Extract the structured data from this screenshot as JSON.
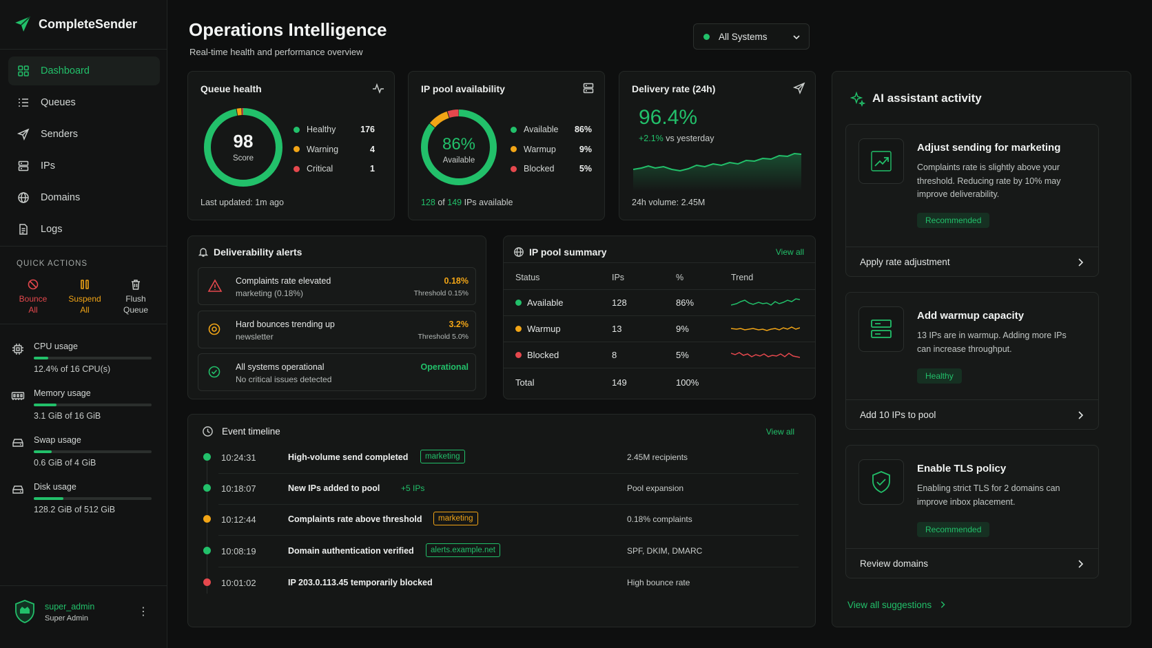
{
  "app": {
    "name": "CompleteSender"
  },
  "sidebar": {
    "nav": [
      {
        "label": "Dashboard",
        "icon": "grid-icon",
        "active": true
      },
      {
        "label": "Queues",
        "icon": "list-icon"
      },
      {
        "label": "Senders",
        "icon": "send-icon"
      },
      {
        "label": "IPs",
        "icon": "server-icon"
      },
      {
        "label": "Domains",
        "icon": "globe-icon"
      },
      {
        "label": "Logs",
        "icon": "document-icon"
      }
    ],
    "quick_actions_title": "QUICK ACTIONS",
    "quick_actions": [
      {
        "line1": "Bounce",
        "line2": "All",
        "icon": "ban-icon",
        "color": "#e5484d"
      },
      {
        "line1": "Suspend",
        "line2": "All",
        "icon": "pause-icon",
        "color": "#f2a516"
      },
      {
        "line1": "Flush",
        "line2": "Queue",
        "icon": "trash-icon",
        "color": "#c9cdcb"
      }
    ],
    "resources": [
      {
        "label": "CPU usage",
        "value": "12.4% of 16 CPU(s)",
        "fraction": 0.124,
        "icon": "cpu-icon"
      },
      {
        "label": "Memory usage",
        "value": "3.1 GiB of 16 GiB",
        "fraction": 0.194,
        "icon": "memory-icon"
      },
      {
        "label": "Swap usage",
        "value": "0.6 GiB of 4 GiB",
        "fraction": 0.15,
        "icon": "swap-icon"
      },
      {
        "label": "Disk usage",
        "value": "128.2 GiB of 512 GiB",
        "fraction": 0.25,
        "icon": "disk-icon"
      }
    ],
    "user": {
      "name": "super_admin",
      "role": "Super Admin",
      "menu": "⋮"
    }
  },
  "header": {
    "title": "Operations Intelligence",
    "subtitle": "Real-time health and performance overview",
    "system_select": "All Systems"
  },
  "queue_health": {
    "title": "Queue health",
    "score": "98",
    "score_label": "Score",
    "legend": [
      {
        "label": "Healthy",
        "value": "176",
        "color": "#22c06a"
      },
      {
        "label": "Warning",
        "value": "4",
        "color": "#f2a516"
      },
      {
        "label": "Critical",
        "value": "1",
        "color": "#e5484d"
      }
    ],
    "footer": "Last updated: 1m ago"
  },
  "ip_pool_availability": {
    "title": "IP pool availability",
    "percent": "86%",
    "percent_label": "Available",
    "legend": [
      {
        "label": "Available",
        "value": "86%",
        "color": "#22c06a"
      },
      {
        "label": "Warmup",
        "value": "9%",
        "color": "#f2a516"
      },
      {
        "label": "Blocked",
        "value": "5%",
        "color": "#e5484d"
      }
    ],
    "footer_available": "128",
    "footer_of": "of",
    "footer_total": "149",
    "footer_suffix": "IPs available"
  },
  "delivery_rate": {
    "title": "Delivery rate (24h)",
    "value": "96.4%",
    "change": "+2.1%",
    "change_suffix": "vs yesterday",
    "footer": "24h volume: 2.45M"
  },
  "deliverability_alerts": {
    "title": "Deliverability alerts",
    "items": [
      {
        "title": "Complaints rate elevated",
        "sub": "marketing (0.18%)",
        "value": "0.18%",
        "threshold": "Threshold 0.15%",
        "color": "#f2a516",
        "icon": "warning-triangle-icon"
      },
      {
        "title": "Hard bounces trending up",
        "sub": "newsletter",
        "value": "3.2%",
        "threshold": "Threshold 5.0%",
        "color": "#f2a516",
        "icon": "alert-circle-icon"
      },
      {
        "title": "All systems operational",
        "sub": "No critical issues detected",
        "value": "Operational",
        "threshold": "",
        "color": "#22c06a",
        "icon": "check-circle-icon"
      }
    ]
  },
  "ip_pool_summary": {
    "title": "IP pool summary",
    "view_all": "View all",
    "columns": [
      "Status",
      "IPs",
      "%",
      "Trend"
    ],
    "rows": [
      {
        "status": "Available",
        "ips": "128",
        "pct": "86%",
        "color": "#22c06a"
      },
      {
        "status": "Warmup",
        "ips": "13",
        "pct": "9%",
        "color": "#f2a516"
      },
      {
        "status": "Blocked",
        "ips": "8",
        "pct": "5%",
        "color": "#e5484d"
      }
    ],
    "total": {
      "label": "Total",
      "ips": "149",
      "pct": "100%"
    }
  },
  "event_timeline": {
    "title": "Event timeline",
    "view_all": "View all",
    "events": [
      {
        "time": "10:24:31",
        "title": "High-volume send completed",
        "tag": "marketing",
        "tag_style": "box-green",
        "right": "2.45M recipients",
        "color": "#22c06a"
      },
      {
        "time": "10:18:07",
        "title": "New IPs added to pool",
        "tag": "+5 IPs",
        "tag_style": "text-green",
        "right": "Pool expansion",
        "color": "#22c06a"
      },
      {
        "time": "10:12:44",
        "title": "Complaints rate above threshold",
        "tag": "marketing",
        "tag_style": "box-amber",
        "right": "0.18% complaints",
        "color": "#f2a516"
      },
      {
        "time": "10:08:19",
        "title": "Domain authentication verified",
        "tag": "alerts.example.net",
        "tag_style": "box-green",
        "right": "SPF, DKIM, DMARC",
        "color": "#22c06a"
      },
      {
        "time": "10:01:02",
        "title": "IP 203.0.113.45 temporarily blocked",
        "tag": "",
        "tag_style": "",
        "right": "High bounce rate",
        "color": "#e5484d"
      }
    ]
  },
  "ai_assistant": {
    "title": "AI assistant activity",
    "suggestions": [
      {
        "title": "Adjust sending for marketing",
        "text": "Complaints rate is slightly above your threshold. Reducing rate by 10% may improve deliverability.",
        "badge": "Recommended",
        "action": "Apply rate adjustment",
        "icon": "trend-up-icon"
      },
      {
        "title": "Add warmup capacity",
        "text": "13 IPs are in warmup. Adding more IPs can increase throughput.",
        "badge": "Healthy",
        "action": "Add 10 IPs to pool",
        "icon": "server-stack-icon"
      },
      {
        "title": "Enable TLS policy",
        "text": "Enabling strict TLS for 2 domains can improve inbox placement.",
        "badge": "Recommended",
        "action": "Review domains",
        "icon": "shield-check-icon"
      }
    ],
    "view_all": "View all suggestions"
  }
}
